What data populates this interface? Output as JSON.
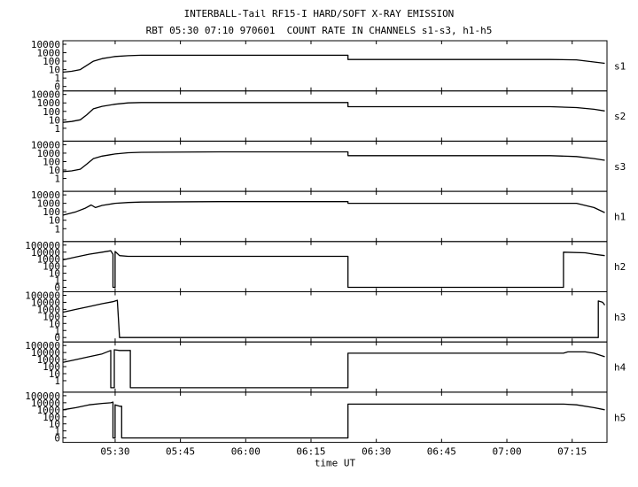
{
  "chart_data": {
    "type": "line",
    "title": "INTERBALL-Tail RF15-I HARD/SOFT X-RAY EMISSION",
    "subtitle": "RBT 05:30 07:10 970601  COUNT RATE IN CHANNELS s1-s3, h1-h5",
    "xlabel": "time UT",
    "x_ticks": [
      "05:30",
      "05:45",
      "06:00",
      "06:15",
      "06:30",
      "06:45",
      "07:00",
      "07:15"
    ],
    "x_tick_minutes": [
      330,
      345,
      360,
      375,
      390,
      405,
      420,
      435
    ],
    "xlim_minutes": [
      318,
      443
    ],
    "y_scale": "log",
    "panels": [
      {
        "name": "s1",
        "y_ticks": [
          "10000",
          "1000",
          "100",
          "10",
          "1",
          "0"
        ],
        "ylim_decades": [
          -1,
          4
        ],
        "points": [
          [
            318,
            0.7
          ],
          [
            320,
            0.8
          ],
          [
            322,
            1.0
          ],
          [
            323.5,
            1.5
          ],
          [
            325,
            2.0
          ],
          [
            327,
            2.3
          ],
          [
            330,
            2.55
          ],
          [
            333,
            2.65
          ],
          [
            336,
            2.7
          ],
          [
            354,
            2.7
          ],
          [
            376,
            2.7
          ],
          [
            383.5,
            2.7
          ],
          [
            383.5,
            2.2
          ],
          [
            400,
            2.2
          ],
          [
            430,
            2.2
          ],
          [
            436,
            2.15
          ],
          [
            440,
            1.9
          ],
          [
            442.5,
            1.75
          ]
        ]
      },
      {
        "name": "s2",
        "y_ticks": [
          "10000",
          "1000",
          "100",
          "10",
          "1"
        ],
        "ylim_decades": [
          -1,
          4
        ],
        "points": [
          [
            318,
            0.7
          ],
          [
            320,
            0.8
          ],
          [
            322,
            1.0
          ],
          [
            323.5,
            1.6
          ],
          [
            325,
            2.3
          ],
          [
            327,
            2.6
          ],
          [
            330,
            2.85
          ],
          [
            333,
            3.0
          ],
          [
            336,
            3.05
          ],
          [
            354,
            3.05
          ],
          [
            376,
            3.05
          ],
          [
            383.5,
            3.05
          ],
          [
            383.5,
            2.55
          ],
          [
            400,
            2.55
          ],
          [
            430,
            2.55
          ],
          [
            436,
            2.45
          ],
          [
            440,
            2.25
          ],
          [
            442.5,
            2.05
          ]
        ]
      },
      {
        "name": "s3",
        "y_ticks": [
          "10000",
          "1000",
          "100",
          "10",
          "1"
        ],
        "ylim_decades": [
          -1,
          4
        ],
        "points": [
          [
            318,
            0.8
          ],
          [
            320,
            0.9
          ],
          [
            322,
            1.1
          ],
          [
            323.5,
            1.7
          ],
          [
            325,
            2.35
          ],
          [
            327,
            2.65
          ],
          [
            330,
            2.9
          ],
          [
            333,
            3.05
          ],
          [
            336,
            3.1
          ],
          [
            354,
            3.15
          ],
          [
            376,
            3.15
          ],
          [
            383.5,
            3.15
          ],
          [
            383.5,
            2.7
          ],
          [
            400,
            2.7
          ],
          [
            430,
            2.7
          ],
          [
            436,
            2.6
          ],
          [
            440,
            2.35
          ],
          [
            442.5,
            2.15
          ]
        ]
      },
      {
        "name": "h1",
        "y_ticks": [
          "10000",
          "1000",
          "100",
          "10",
          "1"
        ],
        "ylim_decades": [
          -1,
          4
        ],
        "points": [
          [
            318,
            1.6
          ],
          [
            321,
            2.0
          ],
          [
            323,
            2.4
          ],
          [
            324.5,
            2.8
          ],
          [
            325.5,
            2.5
          ],
          [
            327,
            2.75
          ],
          [
            330,
            3.0
          ],
          [
            333,
            3.1
          ],
          [
            336,
            3.15
          ],
          [
            354,
            3.2
          ],
          [
            376,
            3.2
          ],
          [
            383.5,
            3.2
          ],
          [
            383.5,
            3.0
          ],
          [
            400,
            3.0
          ],
          [
            430,
            3.0
          ],
          [
            436,
            3.0
          ],
          [
            440,
            2.5
          ],
          [
            442.5,
            1.9
          ]
        ]
      },
      {
        "name": "h2",
        "y_ticks": [
          "100000",
          "10000",
          "1000",
          "100",
          "10",
          "1",
          "0"
        ],
        "ylim_decades": [
          -1,
          5
        ],
        "points": [
          [
            318,
            2.9
          ],
          [
            321,
            3.3
          ],
          [
            324,
            3.7
          ],
          [
            327,
            4.0
          ],
          [
            329,
            4.2
          ],
          [
            329.5,
            3.7
          ],
          [
            329.5,
            -1
          ],
          [
            330,
            -1
          ],
          [
            330,
            4.1
          ],
          [
            331,
            3.5
          ],
          [
            333,
            3.4
          ],
          [
            336,
            3.4
          ],
          [
            360,
            3.4
          ],
          [
            383.5,
            3.4
          ],
          [
            383.5,
            -1
          ],
          [
            433,
            -1
          ],
          [
            433,
            4.0
          ],
          [
            438,
            3.9
          ],
          [
            440,
            3.7
          ],
          [
            442.5,
            3.5
          ]
        ]
      },
      {
        "name": "h3",
        "y_ticks": [
          "100000",
          "10000",
          "1000",
          "100",
          "10",
          "1",
          "0"
        ],
        "ylim_decades": [
          -1,
          5
        ],
        "points": [
          [
            318,
            2.6
          ],
          [
            321,
            3.0
          ],
          [
            324,
            3.4
          ],
          [
            327,
            3.8
          ],
          [
            329.5,
            4.1
          ],
          [
            330.5,
            4.3
          ],
          [
            331,
            -1
          ],
          [
            441,
            -1
          ],
          [
            441,
            4.2
          ],
          [
            442,
            4.0
          ],
          [
            442.5,
            3.6
          ]
        ]
      },
      {
        "name": "h4",
        "y_ticks": [
          "100000",
          "10000",
          "1000",
          "100",
          "10",
          "1"
        ],
        "ylim_decades": [
          -1,
          5
        ],
        "points": [
          [
            318,
            2.6
          ],
          [
            321,
            3.0
          ],
          [
            324,
            3.4
          ],
          [
            327,
            3.8
          ],
          [
            329,
            4.3
          ],
          [
            329,
            -1
          ],
          [
            329.8,
            -1
          ],
          [
            329.8,
            4.4
          ],
          [
            331,
            4.3
          ],
          [
            333.5,
            4.3
          ],
          [
            333.5,
            -1
          ],
          [
            383.5,
            -1
          ],
          [
            383.5,
            3.9
          ],
          [
            400,
            3.9
          ],
          [
            420,
            3.9
          ],
          [
            433,
            3.9
          ],
          [
            434,
            4.1
          ],
          [
            438,
            4.1
          ],
          [
            440,
            3.9
          ],
          [
            442.5,
            3.4
          ]
        ]
      },
      {
        "name": "h5",
        "y_ticks": [
          "100000",
          "10000",
          "1000",
          "100",
          "10",
          "1",
          "0"
        ],
        "ylim_decades": [
          -1,
          5
        ],
        "points": [
          [
            318,
            3.0
          ],
          [
            321,
            3.3
          ],
          [
            324,
            3.7
          ],
          [
            327,
            3.9
          ],
          [
            329,
            4.0
          ],
          [
            329.5,
            4.1
          ],
          [
            329.5,
            -1
          ],
          [
            330,
            -1
          ],
          [
            330,
            3.7
          ],
          [
            331,
            3.5
          ],
          [
            331.5,
            3.5
          ],
          [
            331.5,
            -1
          ],
          [
            383.5,
            -1
          ],
          [
            383.5,
            3.8
          ],
          [
            400,
            3.8
          ],
          [
            420,
            3.8
          ],
          [
            433,
            3.8
          ],
          [
            436,
            3.7
          ],
          [
            440,
            3.3
          ],
          [
            442.5,
            3.0
          ]
        ]
      }
    ]
  }
}
